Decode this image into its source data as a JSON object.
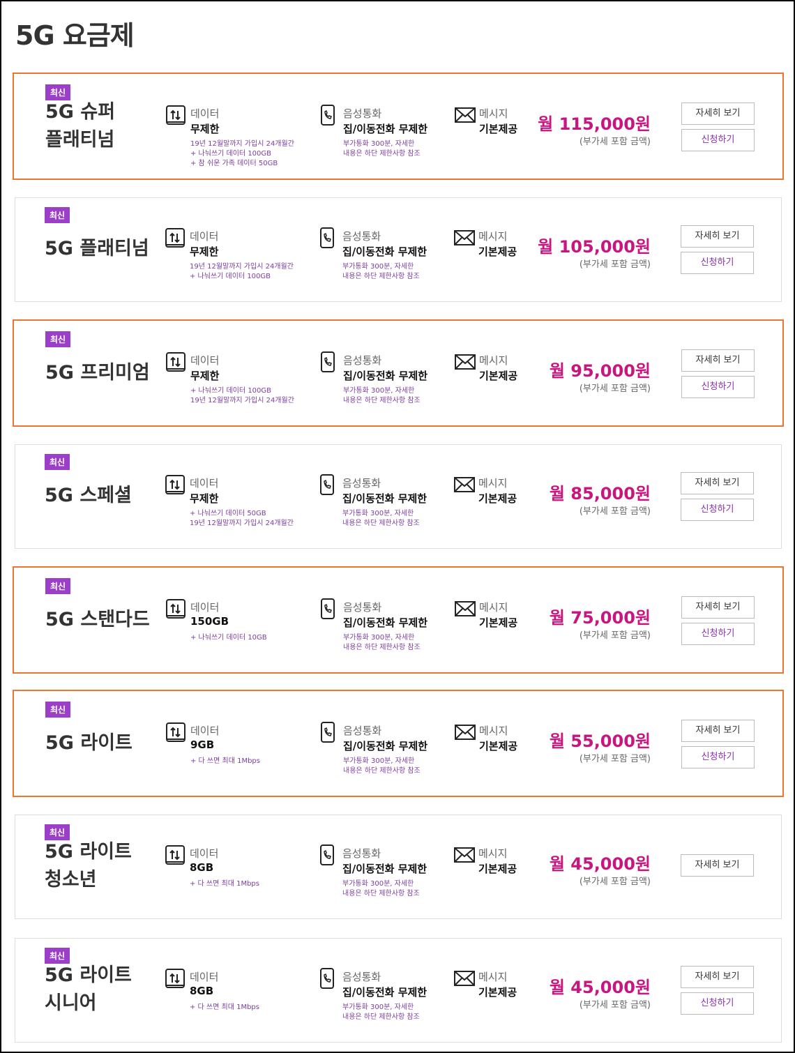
{
  "title": "5G 요금제",
  "plans": [
    {
      "badge": "최신",
      "name": [
        "5G 슈퍼",
        "플래티넘"
      ],
      "highlighted": true,
      "data": {
        "label": "데이터",
        "value": "무제한",
        "notes": [
          "19년 12월말까지 가입시 24개월간",
          "+ 나눠쓰기 데이터 100GB",
          "+ 참 쉬운 가족 데이터 50GB"
        ]
      },
      "voice": {
        "label": "음성통화",
        "value": "집/이동전화 무제한",
        "notes": [
          "부가통화 300분, 자세한",
          "내용은 하단 제한사항 참조"
        ]
      },
      "message": {
        "label": "메시지",
        "value": "기본제공"
      },
      "price": "월 115,000원",
      "price_note": "(부가세 포함 금액)",
      "buttons": [
        "자세히 보기",
        "신청하기"
      ]
    },
    {
      "badge": "최신",
      "name": [
        "5G 플래티넘"
      ],
      "highlighted": false,
      "data": {
        "label": "데이터",
        "value": "무제한",
        "notes": [
          "19년 12월말까지 가입시 24개월간",
          "+ 나눠쓰기 데이터 100GB"
        ]
      },
      "voice": {
        "label": "음성통화",
        "value": "집/이동전화 무제한",
        "notes": [
          "부가통화 300분, 자세한",
          "내용은 하단 제한사항 참조"
        ]
      },
      "message": {
        "label": "메시지",
        "value": "기본제공"
      },
      "price": "월 105,000원",
      "price_note": "(부가세 포함 금액)",
      "buttons": [
        "자세히 보기",
        "신청하기"
      ]
    },
    {
      "badge": "최신",
      "name": [
        "5G 프리미엄"
      ],
      "highlighted": true,
      "data": {
        "label": "데이터",
        "value": "무제한",
        "notes": [
          "+ 나눠쓰기 데이터 100GB",
          "19년 12월말까지 가입시 24개월간"
        ]
      },
      "voice": {
        "label": "음성통화",
        "value": "집/이동전화 무제한",
        "notes": [
          "부가통화 300분, 자세한",
          "내용은 하단 제한사항 참조"
        ]
      },
      "message": {
        "label": "메시지",
        "value": "기본제공"
      },
      "price": "월 95,000원",
      "price_note": "(부가세 포함 금액)",
      "buttons": [
        "자세히 보기",
        "신청하기"
      ]
    },
    {
      "badge": "최신",
      "name": [
        "5G 스페셜"
      ],
      "highlighted": false,
      "data": {
        "label": "데이터",
        "value": "무제한",
        "notes": [
          "+ 나눠쓰기 데이터 50GB",
          "19년 12월말까지 가입시 24개월간"
        ]
      },
      "voice": {
        "label": "음성통화",
        "value": "집/이동전화 무제한",
        "notes": [
          "부가통화 300분, 자세한",
          "내용은 하단 제한사항 참조"
        ]
      },
      "message": {
        "label": "메시지",
        "value": "기본제공"
      },
      "price": "월 85,000원",
      "price_note": "(부가세 포함 금액)",
      "buttons": [
        "자세히 보기",
        "신청하기"
      ]
    },
    {
      "badge": "최신",
      "name": [
        "5G 스탠다드"
      ],
      "highlighted": true,
      "data": {
        "label": "데이터",
        "value": "150GB",
        "notes": [
          "+ 나눠쓰기 데이터 10GB"
        ]
      },
      "voice": {
        "label": "음성통화",
        "value": "집/이동전화 무제한",
        "notes": [
          "부가통화 300분, 자세한",
          "내용은 하단 제한사항 참조"
        ]
      },
      "message": {
        "label": "메시지",
        "value": "기본제공"
      },
      "price": "월 75,000원",
      "price_note": "(부가세 포함 금액)",
      "buttons": [
        "자세히 보기",
        "신청하기"
      ]
    },
    {
      "badge": "최신",
      "name": [
        "5G 라이트"
      ],
      "highlighted": true,
      "data": {
        "label": "데이터",
        "value": "9GB",
        "notes": [
          "+ 다 쓰면 최대 1Mbps"
        ]
      },
      "voice": {
        "label": "음성통화",
        "value": "집/이동전화 무제한",
        "notes": [
          "부가통화 300분, 자세한",
          "내용은 하단 제한사항 참조"
        ]
      },
      "message": {
        "label": "메시지",
        "value": "기본제공"
      },
      "price": "월 55,000원",
      "price_note": "(부가세 포함 금액)",
      "buttons": [
        "자세히 보기",
        "신청하기"
      ]
    },
    {
      "badge": "최신",
      "name": [
        "5G 라이트",
        "청소년"
      ],
      "highlighted": false,
      "data": {
        "label": "데이터",
        "value": "8GB",
        "notes": [
          "+ 다 쓰면 최대 1Mbps"
        ]
      },
      "voice": {
        "label": "음성통화",
        "value": "집/이동전화 무제한",
        "notes": [
          "부가통화 300분, 자세한",
          "내용은 하단 제한사항 참조"
        ]
      },
      "message": {
        "label": "메시지",
        "value": "기본제공"
      },
      "price": "월 45,000원",
      "price_note": "(부가세 포함 금액)",
      "buttons": [
        "자세히 보기"
      ]
    },
    {
      "badge": "최신",
      "name": [
        "5G 라이트",
        "시니어"
      ],
      "highlighted": false,
      "data": {
        "label": "데이터",
        "value": "8GB",
        "notes": [
          "+ 다 쓰면 최대 1Mbps"
        ]
      },
      "voice": {
        "label": "음성통화",
        "value": "집/이동전화 무제한",
        "notes": [
          "부가통화 300분, 자세한",
          "내용은 하단 제한사항 참조"
        ]
      },
      "message": {
        "label": "메시지",
        "value": "기본제공"
      },
      "price": "월 45,000원",
      "price_note": "(부가세 포함 금액)",
      "buttons": [
        "자세히 보기",
        "신청하기"
      ]
    }
  ]
}
